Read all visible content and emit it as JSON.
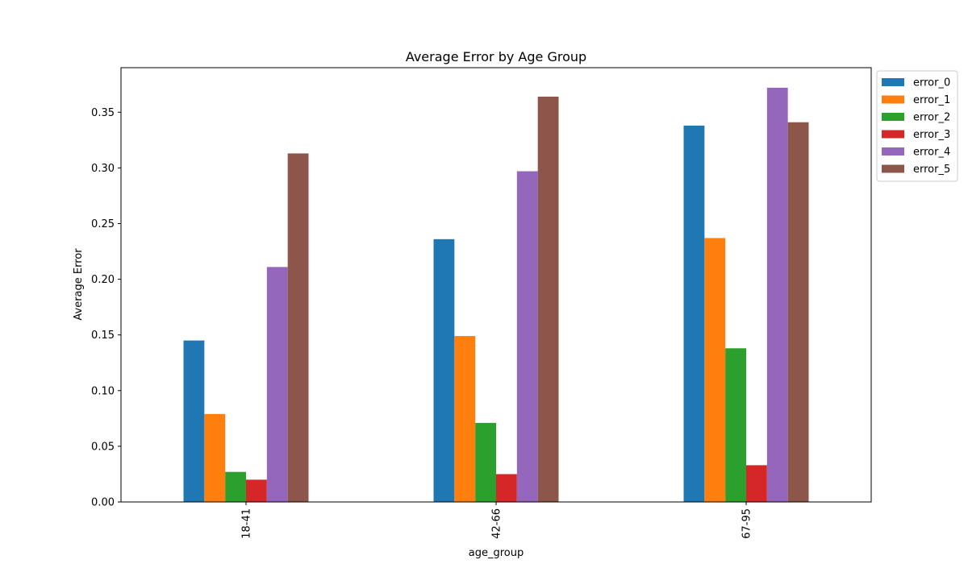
{
  "chart_data": {
    "type": "bar",
    "title": "Average Error by Age Group",
    "xlabel": "age_group",
    "ylabel": "Average Error",
    "categories": [
      "18-41",
      "42-66",
      "67-95"
    ],
    "ylim": [
      0,
      0.39
    ],
    "yticks": [
      0.0,
      0.05,
      0.1,
      0.15,
      0.2,
      0.25,
      0.3,
      0.35
    ],
    "ytick_labels": [
      "0.00",
      "0.05",
      "0.10",
      "0.15",
      "0.20",
      "0.25",
      "0.30",
      "0.35"
    ],
    "grid": false,
    "legend_position": "outside-top-right",
    "series": [
      {
        "name": "error_0",
        "color": "#1f77b4",
        "values": [
          0.145,
          0.236,
          0.338
        ]
      },
      {
        "name": "error_1",
        "color": "#ff7f0e",
        "values": [
          0.079,
          0.149,
          0.237
        ]
      },
      {
        "name": "error_2",
        "color": "#2ca02c",
        "values": [
          0.027,
          0.071,
          0.138
        ]
      },
      {
        "name": "error_3",
        "color": "#d62728",
        "values": [
          0.02,
          0.025,
          0.033
        ]
      },
      {
        "name": "error_4",
        "color": "#9467bd",
        "values": [
          0.211,
          0.297,
          0.372
        ]
      },
      {
        "name": "error_5",
        "color": "#8c564b",
        "values": [
          0.313,
          0.364,
          0.341
        ]
      }
    ]
  }
}
